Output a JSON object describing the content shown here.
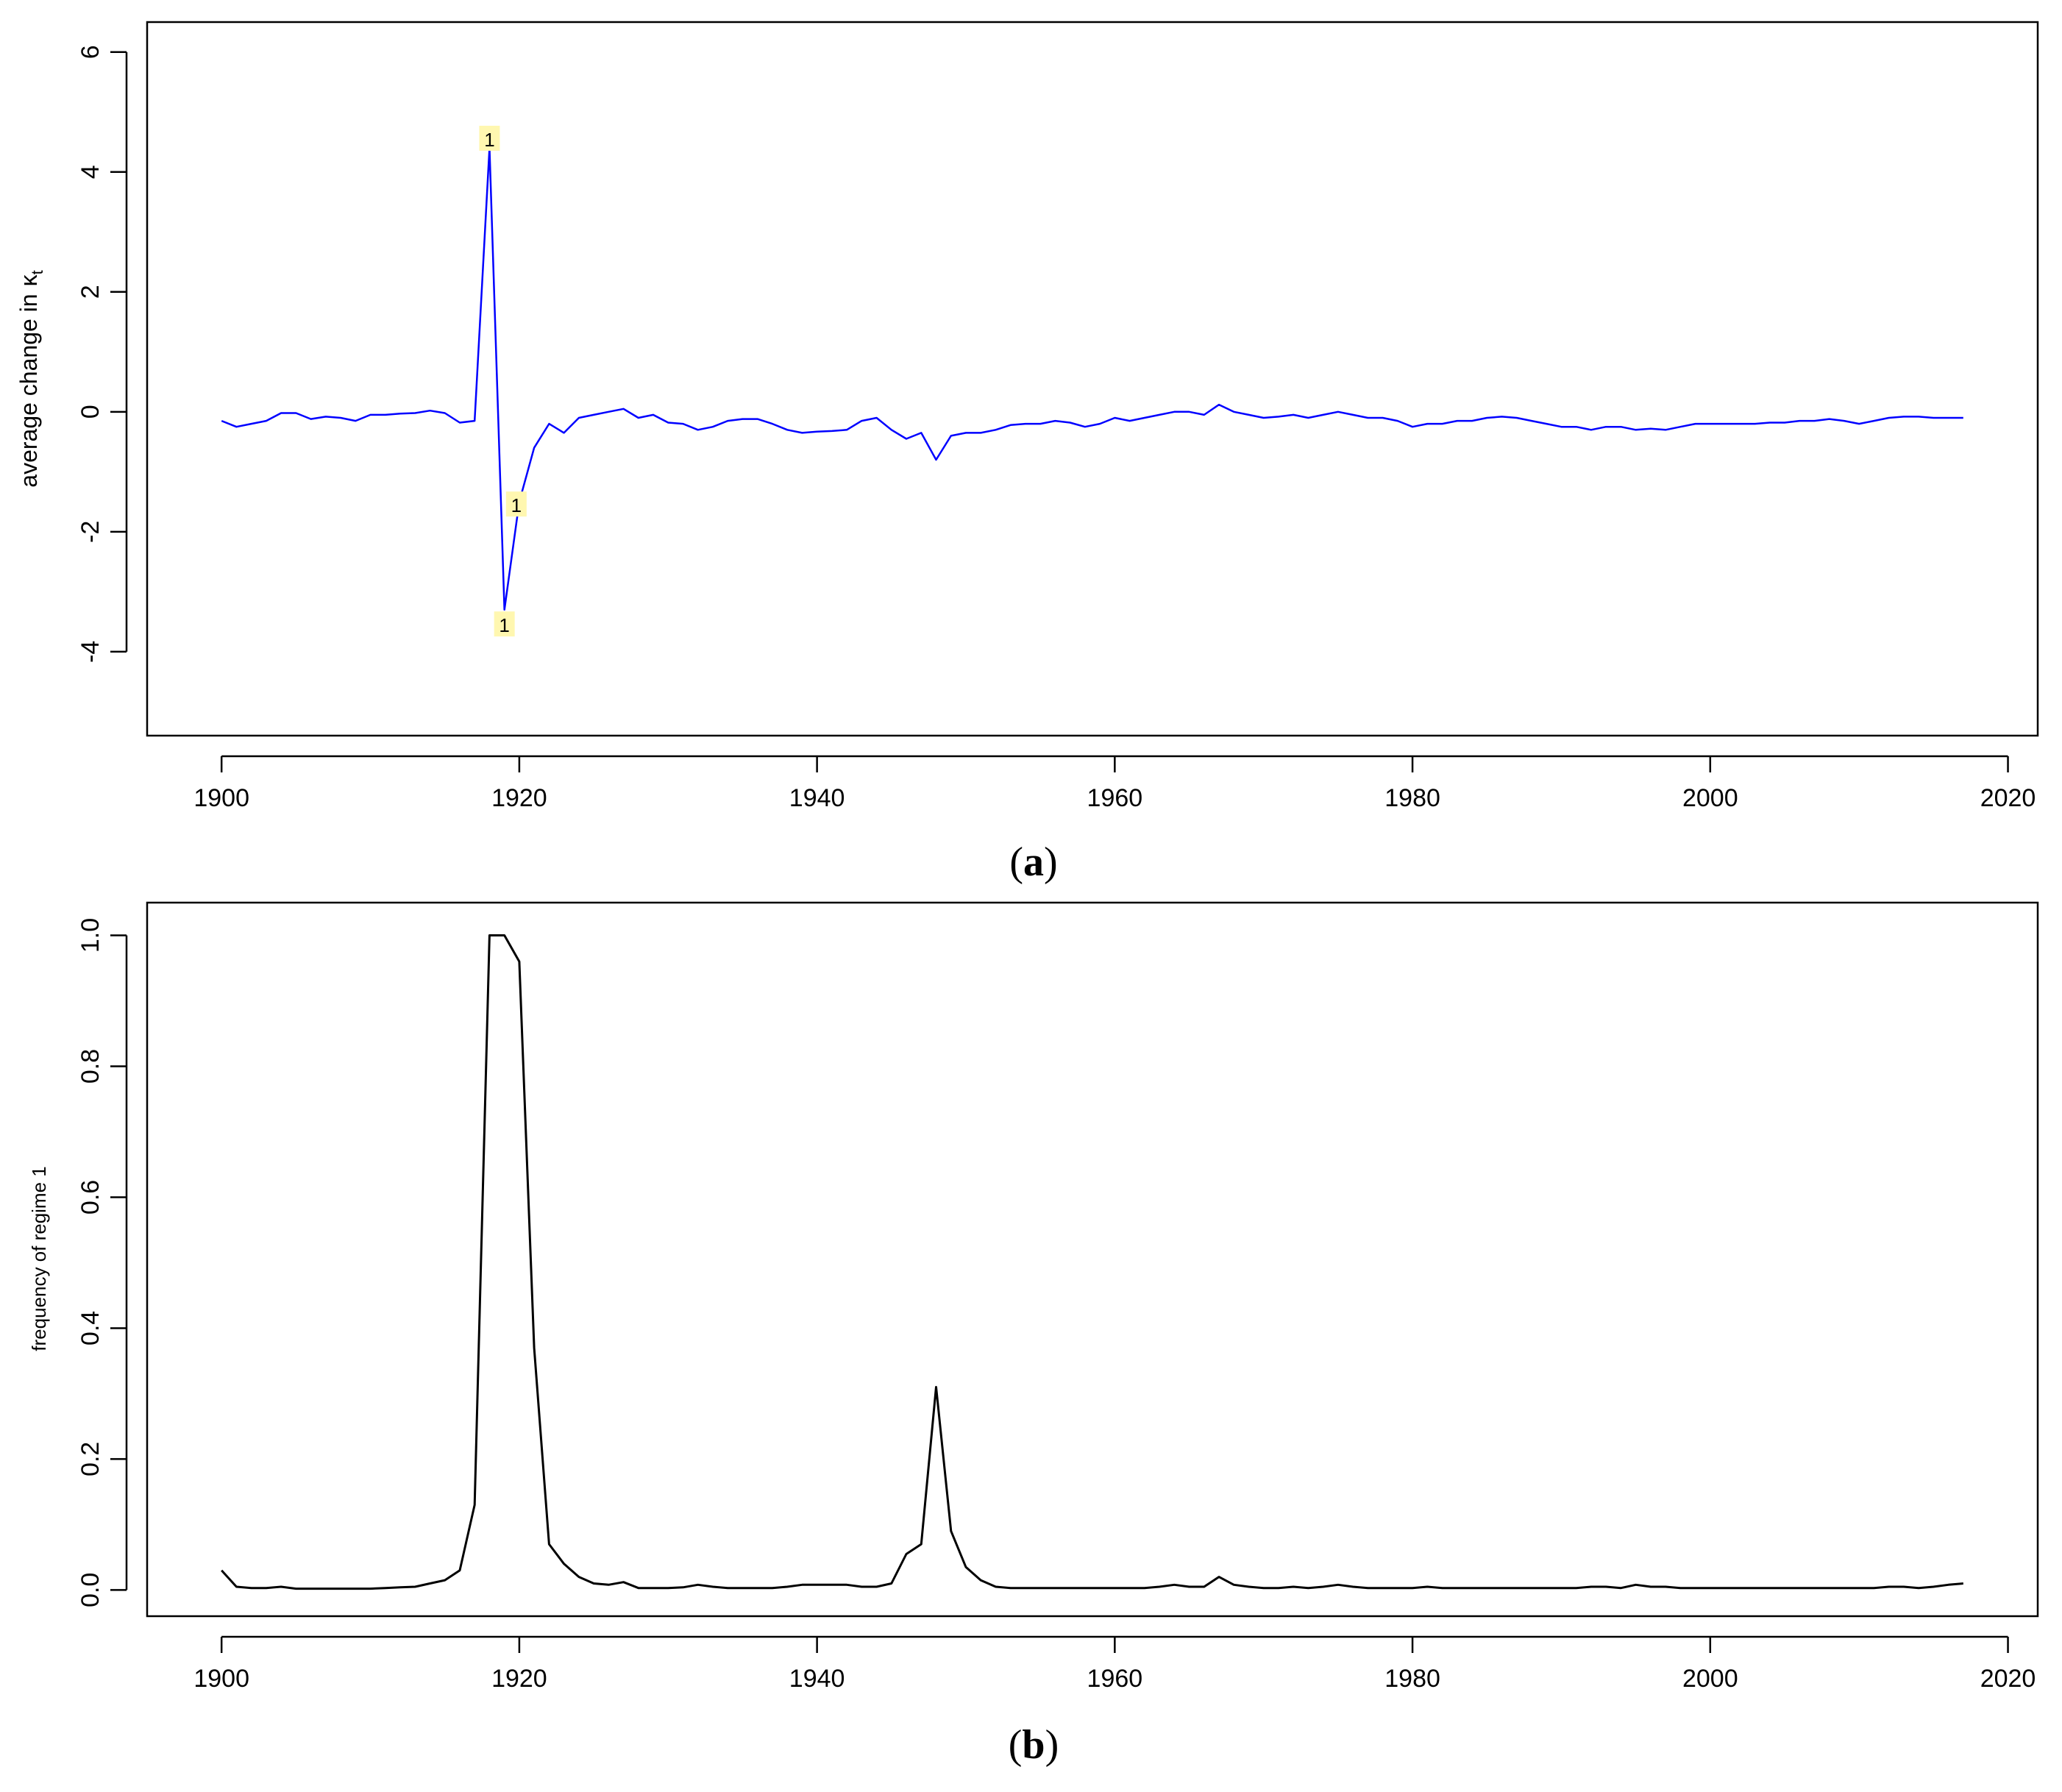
{
  "chart_data": [
    {
      "type": "line",
      "color": "#0000ff",
      "ylabel": "average change in",
      "ylabel_symbol": "κ",
      "ylabel_subscript": "t",
      "xlim": [
        1895,
        2022
      ],
      "ylim": [
        -5.4,
        6.5
      ],
      "xticks": [
        "1900",
        "1920",
        "1940",
        "1960",
        "1980",
        "2000",
        "2020"
      ],
      "yticks": [
        "6",
        "4",
        "2",
        "0",
        "-2",
        "-4"
      ],
      "grid": false,
      "caption_letter": "a",
      "x": [
        1900,
        1901,
        1902,
        1903,
        1904,
        1905,
        1906,
        1907,
        1908,
        1909,
        1910,
        1911,
        1912,
        1913,
        1914,
        1915,
        1916,
        1917,
        1918,
        1919,
        1920,
        1921,
        1922,
        1923,
        1924,
        1925,
        1926,
        1927,
        1928,
        1929,
        1930,
        1931,
        1932,
        1933,
        1934,
        1935,
        1936,
        1937,
        1938,
        1939,
        1940,
        1941,
        1942,
        1943,
        1944,
        1945,
        1946,
        1947,
        1948,
        1949,
        1950,
        1951,
        1952,
        1953,
        1954,
        1955,
        1956,
        1957,
        1958,
        1959,
        1960,
        1961,
        1962,
        1963,
        1964,
        1965,
        1966,
        1967,
        1968,
        1969,
        1970,
        1971,
        1972,
        1973,
        1974,
        1975,
        1976,
        1977,
        1978,
        1979,
        1980,
        1981,
        1982,
        1983,
        1984,
        1985,
        1986,
        1987,
        1988,
        1989,
        1990,
        1991,
        1992,
        1993,
        1994,
        1995,
        1996,
        1997,
        1998,
        1999,
        2000,
        2001,
        2002,
        2003,
        2004,
        2005,
        2006,
        2007,
        2008,
        2009,
        2010,
        2011,
        2012,
        2013,
        2014,
        2015,
        2016,
        2017
      ],
      "y": [
        -0.15,
        -0.25,
        -0.2,
        -0.15,
        -0.02,
        -0.02,
        -0.12,
        -0.08,
        -0.1,
        -0.15,
        -0.05,
        -0.05,
        -0.03,
        -0.02,
        0.02,
        -0.02,
        -0.18,
        -0.15,
        4.4,
        -3.3,
        -1.5,
        -0.6,
        -0.2,
        -0.35,
        -0.1,
        -0.05,
        0,
        0.05,
        -0.1,
        -0.05,
        -0.18,
        -0.2,
        -0.3,
        -0.25,
        -0.15,
        -0.12,
        -0.12,
        -0.2,
        -0.3,
        -0.35,
        -0.33,
        -0.32,
        -0.3,
        -0.15,
        -0.1,
        -0.3,
        -0.45,
        -0.35,
        -0.8,
        -0.4,
        -0.35,
        -0.35,
        -0.3,
        -0.22,
        -0.2,
        -0.2,
        -0.15,
        -0.18,
        -0.25,
        -0.2,
        -0.1,
        -0.15,
        -0.1,
        -0.05,
        0,
        0,
        -0.05,
        0.12,
        0,
        -0.05,
        -0.1,
        -0.08,
        -0.05,
        -0.1,
        -0.05,
        0,
        -0.05,
        -0.1,
        -0.1,
        -0.15,
        -0.25,
        -0.2,
        -0.2,
        -0.15,
        -0.15,
        -0.1,
        -0.08,
        -0.1,
        -0.15,
        -0.2,
        -0.25,
        -0.25,
        -0.3,
        -0.25,
        -0.25,
        -0.3,
        -0.28,
        -0.3,
        -0.25,
        -0.2,
        -0.2,
        -0.2,
        -0.2,
        -0.2,
        -0.18,
        -0.18,
        -0.15,
        -0.15,
        -0.12,
        -0.15,
        -0.2,
        -0.15,
        -0.1,
        -0.08,
        -0.08,
        -0.1,
        -0.1,
        -0.1
      ],
      "annotations": [
        {
          "text": "1",
          "x": 1918,
          "y": 4.55
        },
        {
          "text": "1",
          "x": 1919.8,
          "y": -1.55
        },
        {
          "text": "1",
          "x": 1919,
          "y": -3.55
        }
      ]
    },
    {
      "type": "line",
      "color": "#000000",
      "ylabel": "frequency of regime 1",
      "xlim": [
        1895,
        2022
      ],
      "ylim": [
        -0.04,
        1.05
      ],
      "xticks": [
        "1900",
        "1920",
        "1940",
        "1960",
        "1980",
        "2000",
        "2020"
      ],
      "yticks": [
        "1.0",
        "0.8",
        "0.6",
        "0.4",
        "0.2",
        "0.0"
      ],
      "grid": false,
      "caption_letter": "b",
      "x": [
        1900,
        1901,
        1902,
        1903,
        1904,
        1905,
        1906,
        1907,
        1908,
        1909,
        1910,
        1911,
        1912,
        1913,
        1914,
        1915,
        1916,
        1917,
        1918,
        1919,
        1920,
        1921,
        1922,
        1923,
        1924,
        1925,
        1926,
        1927,
        1928,
        1929,
        1930,
        1931,
        1932,
        1933,
        1934,
        1935,
        1936,
        1937,
        1938,
        1939,
        1940,
        1941,
        1942,
        1943,
        1944,
        1945,
        1946,
        1947,
        1948,
        1949,
        1950,
        1951,
        1952,
        1953,
        1954,
        1955,
        1956,
        1957,
        1958,
        1959,
        1960,
        1961,
        1962,
        1963,
        1964,
        1965,
        1966,
        1967,
        1968,
        1969,
        1970,
        1971,
        1972,
        1973,
        1974,
        1975,
        1976,
        1977,
        1978,
        1979,
        1980,
        1981,
        1982,
        1983,
        1984,
        1985,
        1986,
        1987,
        1988,
        1989,
        1990,
        1991,
        1992,
        1993,
        1994,
        1995,
        1996,
        1997,
        1998,
        1999,
        2000,
        2001,
        2002,
        2003,
        2004,
        2005,
        2006,
        2007,
        2008,
        2009,
        2010,
        2011,
        2012,
        2013,
        2014,
        2015,
        2016,
        2017
      ],
      "y": [
        0.03,
        0.005,
        0.003,
        0.003,
        0.005,
        0.002,
        0.002,
        0.002,
        0.002,
        0.002,
        0.002,
        0.003,
        0.004,
        0.005,
        0.01,
        0.015,
        0.03,
        0.13,
        1.0,
        1.0,
        0.96,
        0.37,
        0.07,
        0.04,
        0.02,
        0.01,
        0.008,
        0.012,
        0.003,
        0.003,
        0.003,
        0.004,
        0.008,
        0.005,
        0.003,
        0.003,
        0.003,
        0.003,
        0.005,
        0.008,
        0.008,
        0.008,
        0.008,
        0.005,
        0.005,
        0.01,
        0.055,
        0.07,
        0.31,
        0.09,
        0.035,
        0.015,
        0.005,
        0.003,
        0.003,
        0.003,
        0.003,
        0.003,
        0.003,
        0.003,
        0.003,
        0.003,
        0.003,
        0.005,
        0.008,
        0.005,
        0.005,
        0.02,
        0.008,
        0.005,
        0.003,
        0.003,
        0.005,
        0.003,
        0.005,
        0.008,
        0.005,
        0.003,
        0.003,
        0.003,
        0.003,
        0.005,
        0.003,
        0.003,
        0.003,
        0.003,
        0.003,
        0.003,
        0.003,
        0.003,
        0.003,
        0.003,
        0.005,
        0.005,
        0.003,
        0.008,
        0.005,
        0.005,
        0.003,
        0.003,
        0.003,
        0.003,
        0.003,
        0.003,
        0.003,
        0.003,
        0.003,
        0.003,
        0.003,
        0.003,
        0.003,
        0.003,
        0.005,
        0.005,
        0.003,
        0.005,
        0.008,
        0.01
      ]
    }
  ]
}
